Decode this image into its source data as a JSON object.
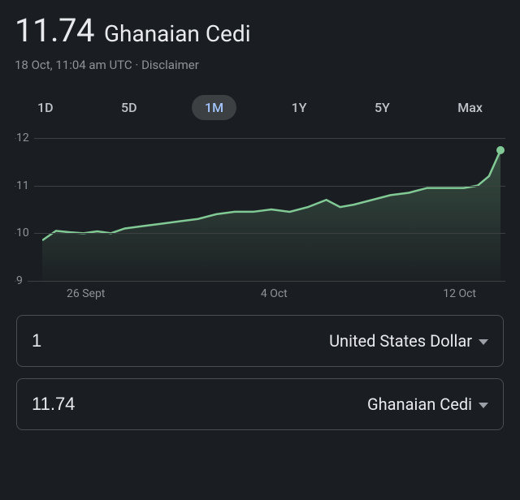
{
  "header": {
    "rate_value": "11.74",
    "currency_name": "Ghanaian Cedi"
  },
  "meta": {
    "timestamp": "18 Oct, 11:04 am UTC",
    "separator": " · ",
    "disclaimer": "Disclaimer"
  },
  "tabs": {
    "items": [
      "1D",
      "5D",
      "1M",
      "1Y",
      "5Y",
      "Max"
    ],
    "active_index": 2
  },
  "chart": {
    "type": "line",
    "ylim": [
      9,
      12
    ],
    "yticks": [
      9,
      10,
      11,
      12
    ],
    "xticks": [
      "26 Sept",
      "4 Oct",
      "12 Oct"
    ],
    "line_color": "#81c995",
    "area_top_color": "rgba(129,201,149,0.28)",
    "area_bottom_color": "rgba(129,201,149,0.02)",
    "grid_color": "#3c4043",
    "background_color": "#1a1d21",
    "label_color": "#8e9399",
    "label_fontsize": 14,
    "line_width": 2.5,
    "end_marker_radius": 5,
    "series": [
      {
        "x": 0.0,
        "y": 9.85
      },
      {
        "x": 0.03,
        "y": 10.05
      },
      {
        "x": 0.06,
        "y": 10.02
      },
      {
        "x": 0.09,
        "y": 10.0
      },
      {
        "x": 0.12,
        "y": 10.04
      },
      {
        "x": 0.15,
        "y": 10.0
      },
      {
        "x": 0.18,
        "y": 10.1
      },
      {
        "x": 0.22,
        "y": 10.15
      },
      {
        "x": 0.26,
        "y": 10.2
      },
      {
        "x": 0.3,
        "y": 10.25
      },
      {
        "x": 0.34,
        "y": 10.3
      },
      {
        "x": 0.38,
        "y": 10.4
      },
      {
        "x": 0.42,
        "y": 10.45
      },
      {
        "x": 0.46,
        "y": 10.45
      },
      {
        "x": 0.5,
        "y": 10.5
      },
      {
        "x": 0.54,
        "y": 10.45
      },
      {
        "x": 0.58,
        "y": 10.55
      },
      {
        "x": 0.62,
        "y": 10.7
      },
      {
        "x": 0.65,
        "y": 10.55
      },
      {
        "x": 0.68,
        "y": 10.6
      },
      {
        "x": 0.72,
        "y": 10.7
      },
      {
        "x": 0.76,
        "y": 10.8
      },
      {
        "x": 0.8,
        "y": 10.85
      },
      {
        "x": 0.84,
        "y": 10.95
      },
      {
        "x": 0.88,
        "y": 10.95
      },
      {
        "x": 0.92,
        "y": 10.95
      },
      {
        "x": 0.95,
        "y": 11.0
      },
      {
        "x": 0.975,
        "y": 11.2
      },
      {
        "x": 1.0,
        "y": 11.74
      }
    ]
  },
  "converters": [
    {
      "amount": "1",
      "currency": "United States Dollar"
    },
    {
      "amount": "11.74",
      "currency": "Ghanaian Cedi"
    }
  ]
}
